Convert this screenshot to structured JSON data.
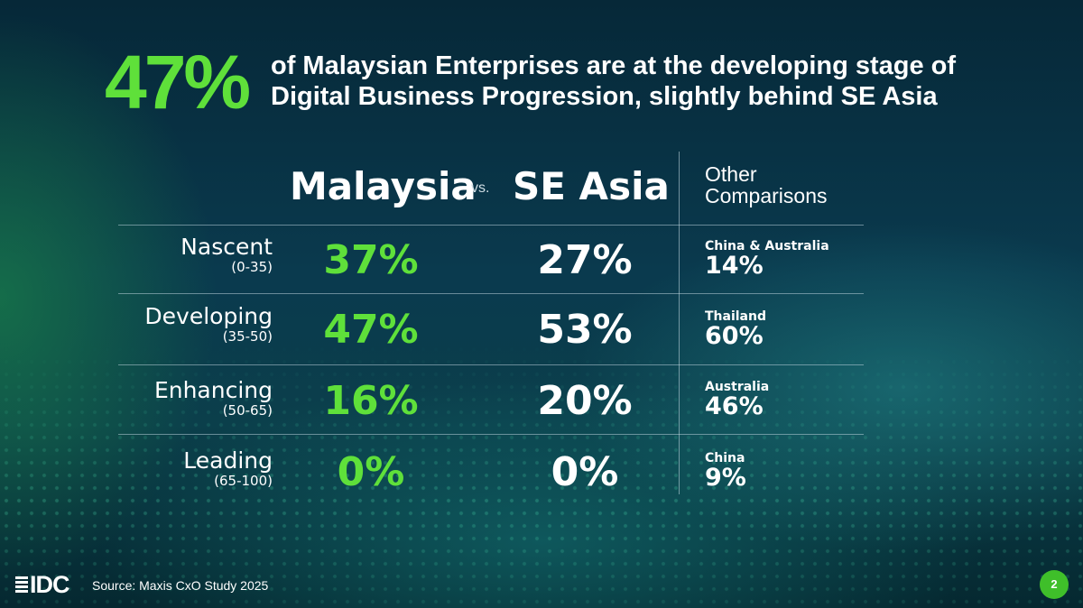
{
  "headline": {
    "stat": "47%",
    "text": "of Malaysian Enterprises are at the developing stage of Digital Business Progression, slightly behind SE Asia"
  },
  "table": {
    "col_malaysia": "Malaysia",
    "vs": "vs.",
    "col_seasia": "SE Asia",
    "col_other_line1": "Other",
    "col_other_line2": "Comparisons",
    "rows": [
      {
        "stage": "Nascent",
        "range": "(0-35)",
        "malaysia": "37%",
        "se_asia": "27%",
        "other_country": "China & Australia",
        "other_value": "14%"
      },
      {
        "stage": "Developing",
        "range": "(35-50)",
        "malaysia": "47%",
        "se_asia": "53%",
        "other_country": "Thailand",
        "other_value": "60%"
      },
      {
        "stage": "Enhancing",
        "range": "(50-65)",
        "malaysia": "16%",
        "se_asia": "20%",
        "other_country": "Australia",
        "other_value": "46%"
      },
      {
        "stage": "Leading",
        "range": "(65-100)",
        "malaysia": "0%",
        "se_asia": "0%",
        "other_country": "China",
        "other_value": "9%"
      }
    ]
  },
  "footer": {
    "logo": "IDC",
    "source": "Source: Maxis CxO Study 2025",
    "page_number": "2"
  },
  "colors": {
    "accent_green": "#5fe03a",
    "background": "#0a3a4e",
    "badge_green": "#3fbf2a"
  }
}
